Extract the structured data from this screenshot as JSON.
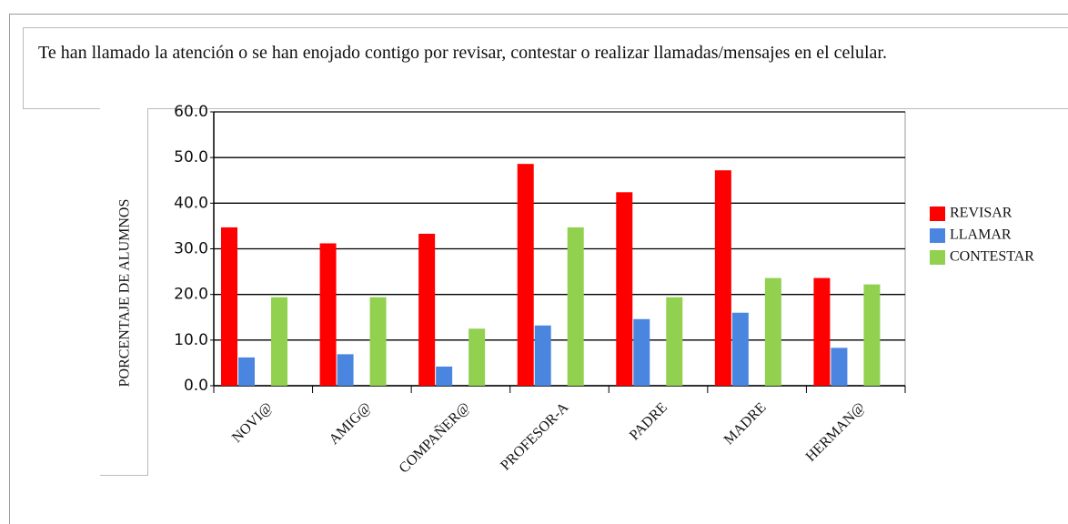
{
  "chart_data": {
    "type": "bar",
    "title": "Te han llamado la atención o se han enojado contigo por revisar, contestar o realizar llamadas/mensajes en el celular.",
    "ylabel": "PORCENTAJE DE ALUMNOS",
    "categories": [
      "NOVI@",
      "AMIG@",
      "COMPAÑER@",
      "PROFESOR-A",
      "PADRE",
      "MADRE",
      "HERMAN@"
    ],
    "series": [
      {
        "name": "REVISAR",
        "color": "#ff0000",
        "values": [
          34.7,
          31.2,
          33.3,
          48.6,
          42.4,
          47.2,
          23.6
        ]
      },
      {
        "name": "LLAMAR",
        "color": "#4a86e0",
        "values": [
          6.2,
          6.9,
          4.2,
          13.2,
          14.6,
          16.0,
          8.3
        ]
      },
      {
        "name": "CONTESTAR",
        "color": "#92d050",
        "values": [
          19.4,
          19.4,
          12.5,
          34.7,
          19.4,
          23.6,
          22.2
        ]
      }
    ],
    "ylim": [
      0,
      60
    ],
    "yticks": [
      {
        "value": 0,
        "label": "0.0"
      },
      {
        "value": 10,
        "label": "10.0"
      },
      {
        "value": 20,
        "label": "20.0"
      },
      {
        "value": 30,
        "label": "30.0"
      },
      {
        "value": 40,
        "label": "40.0"
      },
      {
        "value": 50,
        "label": "50.0"
      },
      {
        "value": 60,
        "label": "60.0"
      }
    ],
    "grid": true,
    "legend": "right"
  }
}
